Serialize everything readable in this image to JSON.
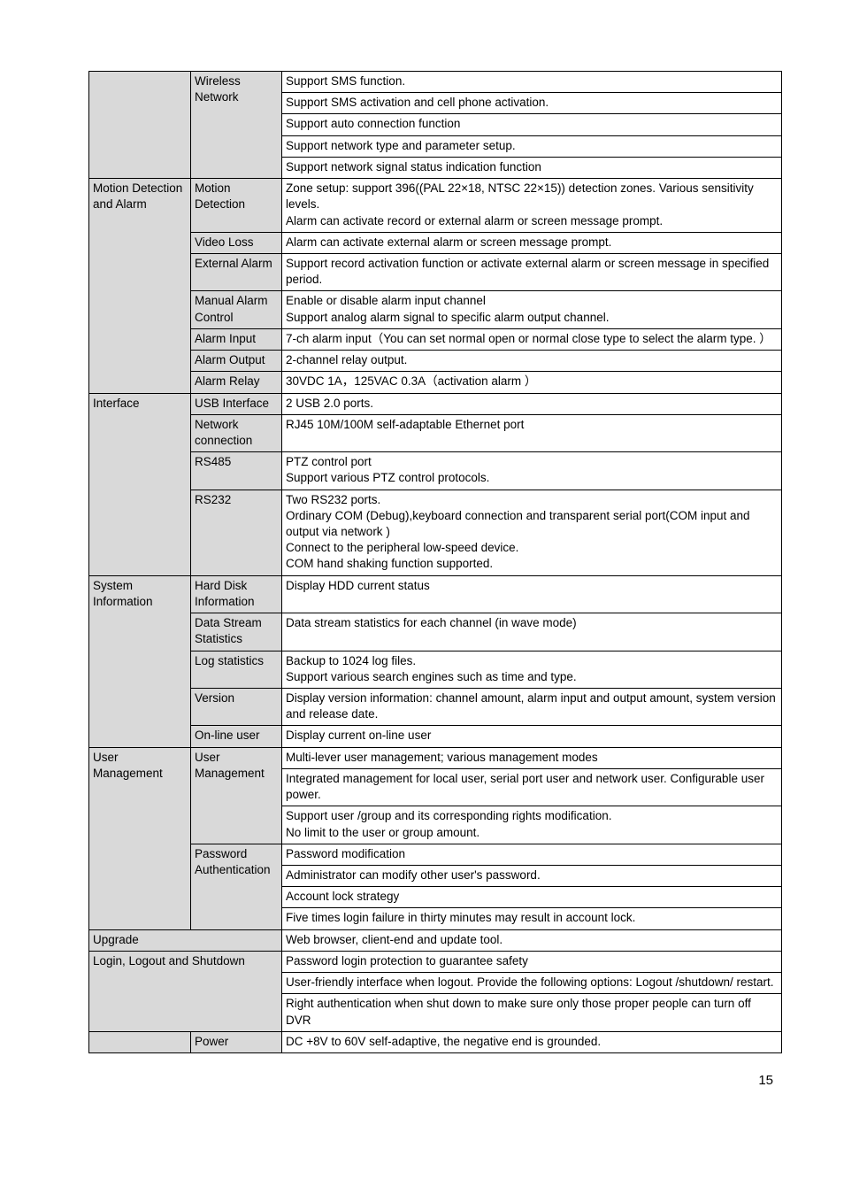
{
  "rows": [
    {
      "c1": {
        "text": "",
        "rowspan": 5,
        "shade": true
      },
      "c2": {
        "text": "Wireless Network",
        "rowspan": 5,
        "shade": true
      },
      "c3": {
        "text": "Support SMS function."
      }
    },
    {
      "c3": {
        "text": "Support SMS activation and cell phone activation."
      }
    },
    {
      "c3": {
        "text": "Support auto connection function"
      }
    },
    {
      "c3": {
        "text": "Support network type and parameter setup."
      }
    },
    {
      "c3": {
        "text": "Support network signal status indication function"
      }
    },
    {
      "c1": {
        "text": "Motion Detection and Alarm",
        "rowspan": 7,
        "shade": true
      },
      "c2": {
        "text": "Motion Detection",
        "shade": true
      },
      "c3": {
        "text": "Zone setup: support 396((PAL 22×18, NTSC 22×15)) detection zones. Various sensitivity levels.\nAlarm can activate record or external alarm or screen message prompt."
      }
    },
    {
      "c2": {
        "text": "Video Loss",
        "shade": true
      },
      "c3": {
        "text": "Alarm can activate external alarm or screen message prompt."
      }
    },
    {
      "c2": {
        "text": "External Alarm",
        "shade": true
      },
      "c3": {
        "text": "Support record activation function or activate external alarm or screen message in specified period."
      }
    },
    {
      "c2": {
        "text": "Manual Alarm Control",
        "shade": true
      },
      "c3": {
        "text": "Enable or disable alarm input channel\nSupport analog alarm signal to specific alarm output channel."
      }
    },
    {
      "c2": {
        "text": "Alarm Input",
        "shade": true
      },
      "c3": {
        "text": "7-ch alarm input（You can set normal open or normal close type to select the alarm type. ）"
      }
    },
    {
      "c2": {
        "text": "Alarm Output",
        "shade": true
      },
      "c3": {
        "text": "2-channel relay output."
      }
    },
    {
      "c2": {
        "text": "Alarm Relay",
        "shade": true
      },
      "c3": {
        "text": "30VDC    1A，125VAC   0.3A（activation alarm ）"
      }
    },
    {
      "c1": {
        "text": "Interface",
        "rowspan": 4,
        "shade": true
      },
      "c2": {
        "text": "USB Interface",
        "shade": true
      },
      "c3": {
        "text": "2 USB 2.0 ports."
      }
    },
    {
      "c2": {
        "text": "Network connection",
        "shade": true
      },
      "c3": {
        "text": "RJ45 10M/100M self-adaptable Ethernet port"
      }
    },
    {
      "c2": {
        "text": "RS485",
        "shade": true
      },
      "c3": {
        "text": "PTZ control port\nSupport various PTZ control protocols."
      }
    },
    {
      "c2": {
        "text": "RS232",
        "shade": true
      },
      "c3": {
        "text": "Two RS232 ports.\nOrdinary COM (Debug),keyboard connection and transparent serial port(COM  input and output via network )\nConnect to the peripheral low-speed device.\nCOM hand shaking function supported."
      }
    },
    {
      "c1": {
        "text": "System Information",
        "rowspan": 5,
        "shade": true
      },
      "c2": {
        "text": "Hard Disk Information",
        "shade": true
      },
      "c3": {
        "text": "Display HDD current status"
      }
    },
    {
      "c2": {
        "text": "Data Stream Statistics",
        "shade": true
      },
      "c3": {
        "text": "Data stream statistics for each channel (in wave mode)"
      }
    },
    {
      "c2": {
        "text": "Log statistics",
        "shade": true
      },
      "c3": {
        "text": "Backup to 1024 log files.\nSupport various search engines such as time and type."
      }
    },
    {
      "c2": {
        "text": "Version",
        "shade": true
      },
      "c3": {
        "text": "Display version information: channel amount, alarm input and output amount, system version and release date."
      }
    },
    {
      "c2": {
        "text": "On-line user",
        "shade": true
      },
      "c3": {
        "text": "Display current on-line user"
      }
    },
    {
      "c1": {
        "text": "User Management",
        "rowspan": 7,
        "shade": true
      },
      "c2": {
        "text": "User Management",
        "rowspan": 3,
        "shade": true
      },
      "c3": {
        "text": "Multi-lever user management; various management modes"
      }
    },
    {
      "c3": {
        "text": "Integrated management for local user, serial port user and network user. Configurable user power."
      }
    },
    {
      "c3": {
        "text": "Support user /group and its corresponding rights modification.\nNo limit to the user or group amount."
      }
    },
    {
      "c2": {
        "text": "Password Authentication",
        "rowspan": 4,
        "shade": true
      },
      "c3": {
        "text": "Password modification"
      }
    },
    {
      "c3": {
        "text": "Administrator can modify other user's password."
      }
    },
    {
      "c3": {
        "text": "Account lock strategy"
      }
    },
    {
      "c3": {
        "text": "Five times login failure in thirty minutes may result in account lock."
      }
    },
    {
      "c1": {
        "text": "Upgrade",
        "colspan": 2,
        "shade": true
      },
      "c3": {
        "text": "Web browser, client-end and update tool."
      }
    },
    {
      "c1": {
        "text": "Login, Logout and Shutdown",
        "colspan": 2,
        "rowspan": 3,
        "shade": true
      },
      "c3": {
        "text": "Password login protection to guarantee safety"
      }
    },
    {
      "c3": {
        "text": "User-friendly interface when logout. Provide the following options: Logout /shutdown/ restart."
      }
    },
    {
      "c3": {
        "text": "Right authentication when shut down to make sure only those proper people can turn off DVR"
      }
    },
    {
      "c1": {
        "text": "",
        "shade": true
      },
      "c2": {
        "text": "Power",
        "shade": true
      },
      "c3": {
        "text": "DC +8V to 60V self-adaptive, the negative end is grounded."
      }
    }
  ],
  "pagenum": "15"
}
